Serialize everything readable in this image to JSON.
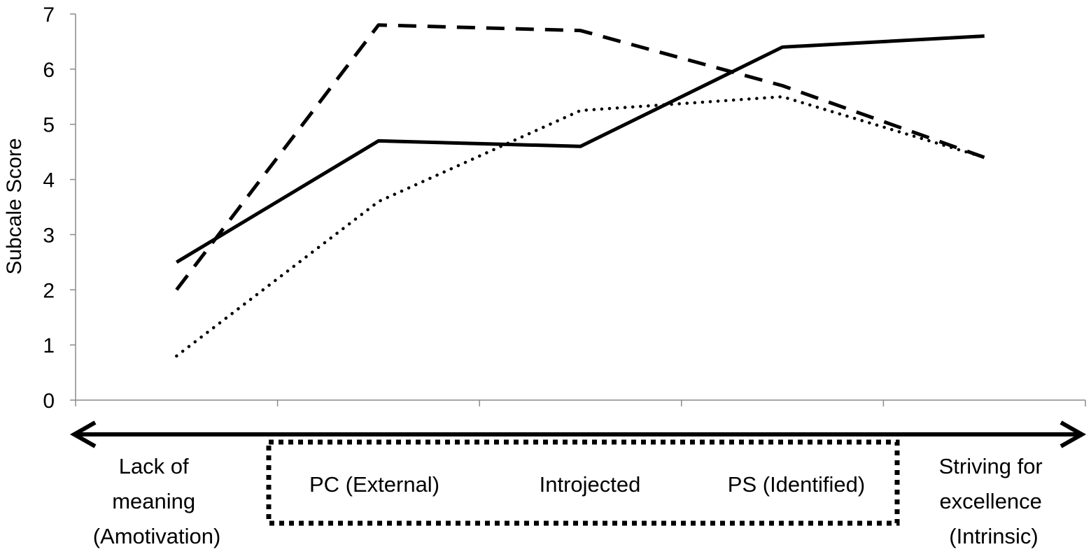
{
  "chart_data": {
    "type": "line",
    "title": "",
    "xlabel": "",
    "ylabel": "Subcale Score",
    "ylim": [
      0,
      7
    ],
    "yticks": [
      "0",
      "1",
      "2",
      "3",
      "4",
      "5",
      "6",
      "7"
    ],
    "categories": [
      "Lack of meaning (Amotivation)",
      "PC (External)",
      "Introjected",
      "PS (Identified)",
      "Striving for excellence (Intrinsic)"
    ],
    "grid": false,
    "legend": "none",
    "series": [
      {
        "style": "solid",
        "values": [
          2.5,
          4.7,
          4.6,
          6.4,
          6.6
        ]
      },
      {
        "style": "dashed",
        "values": [
          2.0,
          6.8,
          6.7,
          5.7,
          4.4
        ]
      },
      {
        "style": "dotted",
        "values": [
          0.8,
          3.6,
          5.25,
          5.5,
          4.4
        ]
      }
    ]
  },
  "continuum": {
    "lines": [
      [
        "Lack of",
        "meaning",
        "(Amotivation)"
      ],
      [
        "PC (External)"
      ],
      [
        "Introjected"
      ],
      [
        "PS (Identified)"
      ],
      [
        "Striving for",
        "excellence",
        "(Intrinsic)"
      ]
    ]
  },
  "colors": {
    "ink": "#000000",
    "background": "#ffffff"
  }
}
